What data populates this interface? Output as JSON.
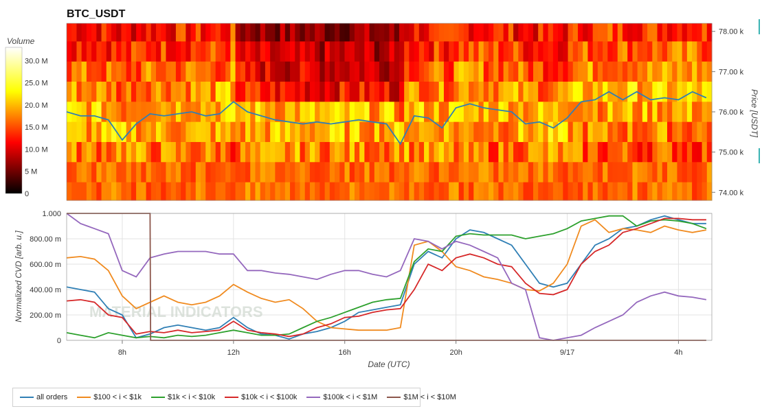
{
  "chart_data": [
    {
      "type": "heatmap",
      "title": "BTC_USDT",
      "ylabel": "Price [USDT]",
      "ylim": [
        73.8,
        78.2
      ],
      "y_ticks": [
        "74.00 k",
        "75.00 k",
        "76.00 k",
        "77.00 k",
        "78.00 k"
      ],
      "price_bins": [
        74.0,
        74.5,
        75.0,
        75.5,
        76.0,
        76.5,
        77.0,
        77.5,
        78.0
      ],
      "colorbar": {
        "label": "Volume",
        "ticks": [
          "0",
          "5 M",
          "10.0 M",
          "15.0 M",
          "20.0 M",
          "25.0 M",
          "30.0 M"
        ],
        "range": [
          0,
          33
        ]
      },
      "price_line": {
        "color": "#2f7fb5",
        "x": [
          6.0,
          6.5,
          7.0,
          7.5,
          8.0,
          8.5,
          9.0,
          9.5,
          10.0,
          10.5,
          11.0,
          11.5,
          12.0,
          12.5,
          13.0,
          13.5,
          14.0,
          14.5,
          15.0,
          15.5,
          16.0,
          16.5,
          17.0,
          17.5,
          18.0,
          18.5,
          19.0,
          19.5,
          20.0,
          20.5,
          21.0,
          21.5,
          22.0,
          22.5,
          23.0,
          23.5,
          24.0,
          24.5,
          25.0,
          25.5,
          26.0,
          26.5,
          27.0,
          27.5,
          28.0,
          28.5,
          29.0
        ],
        "y": [
          76.0,
          75.9,
          75.9,
          75.8,
          75.3,
          75.7,
          75.95,
          75.9,
          75.95,
          76.0,
          75.9,
          75.95,
          76.25,
          76.0,
          75.9,
          75.8,
          75.75,
          75.7,
          75.75,
          75.7,
          75.75,
          75.8,
          75.75,
          75.7,
          75.2,
          75.9,
          75.85,
          75.6,
          76.1,
          76.2,
          76.1,
          76.05,
          76.0,
          75.7,
          75.75,
          75.6,
          75.85,
          76.25,
          76.3,
          76.5,
          76.3,
          76.5,
          76.3,
          76.35,
          76.3,
          76.5,
          76.35
        ]
      }
    },
    {
      "type": "line",
      "xlabel": "Date (UTC)",
      "ylabel": "Normalized CVD [arb. u.]",
      "xlim": [
        6.0,
        29.2
      ],
      "ylim": [
        0,
        1
      ],
      "x_ticks": [
        {
          "x": 8,
          "label": "8h"
        },
        {
          "x": 12,
          "label": "12h"
        },
        {
          "x": 16,
          "label": "16h"
        },
        {
          "x": 20,
          "label": "20h"
        },
        {
          "x": 24,
          "label": "9/17"
        },
        {
          "x": 28,
          "label": "4h"
        }
      ],
      "y_ticks": [
        {
          "y": 0,
          "label": "0"
        },
        {
          "y": 0.2,
          "label": "200.00 m"
        },
        {
          "y": 0.4,
          "label": "400.00 m"
        },
        {
          "y": 0.6,
          "label": "600.00 m"
        },
        {
          "y": 0.8,
          "label": "800.00 m"
        },
        {
          "y": 1.0,
          "label": "1.000"
        }
      ],
      "series": [
        {
          "name": "all orders",
          "color": "#2f7fb5",
          "x": [
            6.0,
            6.5,
            7.0,
            7.5,
            8.0,
            8.5,
            9.0,
            9.5,
            10.0,
            10.5,
            11.0,
            11.5,
            12.0,
            12.5,
            13.0,
            13.5,
            14.0,
            14.5,
            15.0,
            15.5,
            16.0,
            16.5,
            17.0,
            17.5,
            18.0,
            18.5,
            19.0,
            19.5,
            20.0,
            20.5,
            21.0,
            21.5,
            22.0,
            22.5,
            23.0,
            23.5,
            24.0,
            24.5,
            25.0,
            25.5,
            26.0,
            26.5,
            27.0,
            27.5,
            28.0,
            28.5,
            29.0
          ],
          "y": [
            0.42,
            0.4,
            0.38,
            0.25,
            0.2,
            0.02,
            0.05,
            0.1,
            0.12,
            0.1,
            0.08,
            0.1,
            0.18,
            0.1,
            0.05,
            0.04,
            0.01,
            0.05,
            0.07,
            0.1,
            0.15,
            0.22,
            0.24,
            0.26,
            0.28,
            0.6,
            0.7,
            0.65,
            0.8,
            0.87,
            0.85,
            0.8,
            0.75,
            0.6,
            0.45,
            0.42,
            0.45,
            0.6,
            0.75,
            0.8,
            0.88,
            0.9,
            0.95,
            0.98,
            0.95,
            0.92,
            0.92
          ]
        },
        {
          "name": "$100 < i < $1k",
          "color": "#f08a1e",
          "x": [
            6.0,
            6.5,
            7.0,
            7.5,
            8.0,
            8.5,
            9.0,
            9.5,
            10.0,
            10.5,
            11.0,
            11.5,
            12.0,
            12.5,
            13.0,
            13.5,
            14.0,
            14.5,
            15.0,
            15.5,
            16.0,
            16.5,
            17.0,
            17.5,
            18.0,
            18.5,
            19.0,
            19.5,
            20.0,
            20.5,
            21.0,
            21.5,
            22.0,
            22.5,
            23.0,
            23.5,
            24.0,
            24.5,
            25.0,
            25.5,
            26.0,
            26.5,
            27.0,
            27.5,
            28.0,
            28.5,
            29.0
          ],
          "y": [
            0.65,
            0.66,
            0.64,
            0.55,
            0.35,
            0.25,
            0.3,
            0.35,
            0.3,
            0.28,
            0.3,
            0.35,
            0.44,
            0.38,
            0.33,
            0.3,
            0.32,
            0.25,
            0.15,
            0.1,
            0.09,
            0.08,
            0.08,
            0.08,
            0.1,
            0.75,
            0.78,
            0.7,
            0.58,
            0.55,
            0.5,
            0.48,
            0.45,
            0.4,
            0.39,
            0.45,
            0.6,
            0.9,
            0.95,
            0.85,
            0.88,
            0.87,
            0.85,
            0.9,
            0.87,
            0.85,
            0.87
          ]
        },
        {
          "name": "$1k < i < $10k",
          "color": "#2ca02c",
          "x": [
            6.0,
            6.5,
            7.0,
            7.5,
            8.0,
            8.5,
            9.0,
            9.5,
            10.0,
            10.5,
            11.0,
            11.5,
            12.0,
            12.5,
            13.0,
            13.5,
            14.0,
            14.5,
            15.0,
            15.5,
            16.0,
            16.5,
            17.0,
            17.5,
            18.0,
            18.5,
            19.0,
            19.5,
            20.0,
            20.5,
            21.0,
            21.5,
            22.0,
            22.5,
            23.0,
            23.5,
            24.0,
            24.5,
            25.0,
            25.5,
            26.0,
            26.5,
            27.0,
            27.5,
            28.0,
            28.5,
            29.0
          ],
          "y": [
            0.06,
            0.04,
            0.02,
            0.06,
            0.04,
            0.02,
            0.03,
            0.02,
            0.04,
            0.03,
            0.04,
            0.06,
            0.08,
            0.06,
            0.04,
            0.04,
            0.05,
            0.1,
            0.15,
            0.18,
            0.22,
            0.26,
            0.3,
            0.32,
            0.33,
            0.62,
            0.72,
            0.7,
            0.82,
            0.84,
            0.83,
            0.83,
            0.83,
            0.8,
            0.82,
            0.84,
            0.88,
            0.94,
            0.96,
            0.98,
            0.98,
            0.9,
            0.94,
            0.95,
            0.94,
            0.92,
            0.88
          ]
        },
        {
          "name": "$10k < i < $100k",
          "color": "#d62728",
          "x": [
            6.0,
            6.5,
            7.0,
            7.5,
            8.0,
            8.5,
            9.0,
            9.5,
            10.0,
            10.5,
            11.0,
            11.5,
            12.0,
            12.5,
            13.0,
            13.5,
            14.0,
            14.5,
            15.0,
            15.5,
            16.0,
            16.5,
            17.0,
            17.5,
            18.0,
            18.5,
            19.0,
            19.5,
            20.0,
            20.5,
            21.0,
            21.5,
            22.0,
            22.5,
            23.0,
            23.5,
            24.0,
            24.5,
            25.0,
            25.5,
            26.0,
            26.5,
            27.0,
            27.5,
            28.0,
            28.5,
            29.0
          ],
          "y": [
            0.31,
            0.32,
            0.3,
            0.2,
            0.18,
            0.05,
            0.07,
            0.06,
            0.08,
            0.06,
            0.07,
            0.08,
            0.15,
            0.08,
            0.06,
            0.05,
            0.03,
            0.05,
            0.1,
            0.13,
            0.18,
            0.19,
            0.22,
            0.24,
            0.25,
            0.4,
            0.6,
            0.55,
            0.65,
            0.68,
            0.65,
            0.6,
            0.58,
            0.45,
            0.37,
            0.36,
            0.4,
            0.6,
            0.7,
            0.75,
            0.85,
            0.88,
            0.92,
            0.96,
            0.96,
            0.95,
            0.95
          ]
        },
        {
          "name": "$100k < i < $1M",
          "color": "#9467bd",
          "x": [
            6.0,
            6.5,
            7.0,
            7.5,
            8.0,
            8.5,
            9.0,
            9.5,
            10.0,
            10.5,
            11.0,
            11.5,
            12.0,
            12.5,
            13.0,
            13.5,
            14.0,
            14.5,
            15.0,
            15.5,
            16.0,
            16.5,
            17.0,
            17.5,
            18.0,
            18.5,
            19.0,
            19.5,
            20.0,
            20.5,
            21.0,
            21.5,
            22.0,
            22.5,
            23.0,
            23.5,
            24.0,
            24.5,
            25.0,
            25.5,
            26.0,
            26.5,
            27.0,
            27.5,
            28.0,
            28.5,
            29.0
          ],
          "y": [
            1.0,
            0.92,
            0.88,
            0.84,
            0.55,
            0.5,
            0.65,
            0.68,
            0.7,
            0.7,
            0.7,
            0.68,
            0.68,
            0.55,
            0.55,
            0.53,
            0.52,
            0.5,
            0.48,
            0.52,
            0.55,
            0.55,
            0.52,
            0.5,
            0.55,
            0.8,
            0.78,
            0.72,
            0.78,
            0.75,
            0.7,
            0.65,
            0.45,
            0.4,
            0.02,
            0.0,
            0.02,
            0.04,
            0.1,
            0.15,
            0.2,
            0.3,
            0.35,
            0.38,
            0.35,
            0.34,
            0.32
          ]
        },
        {
          "name": "$1M < i < $10M",
          "color": "#8c564b",
          "x": [
            6.0,
            7.0,
            8.0,
            9.0,
            9.02,
            10.0,
            12.0,
            16.0,
            20.0,
            24.0,
            28.0,
            29.0
          ],
          "y": [
            1.0,
            1.0,
            1.0,
            1.0,
            0.0,
            0.0,
            0.0,
            0.0,
            0.0,
            0.0,
            0.0,
            0.0
          ]
        }
      ],
      "legend_position": "bottom-left"
    }
  ],
  "watermark": "MATERIAL INDICATORS"
}
